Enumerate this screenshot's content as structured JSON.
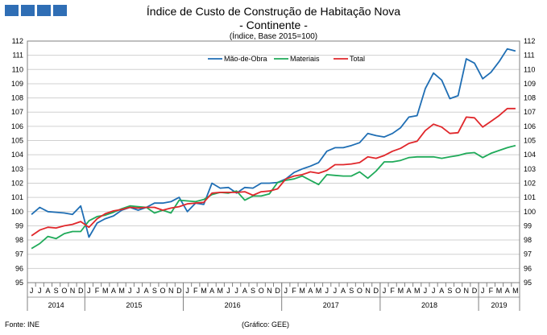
{
  "header": {
    "title": "Índice de Custo de Construção de Habitação Nova",
    "subtitle": "- Continente -",
    "base_note": "(Índice, Base 2015=100)"
  },
  "footer": {
    "source": "Fonte: INE",
    "credit": "(Gráfico: GEE)"
  },
  "colors": {
    "logo": "#2f6eb5",
    "grid": "#d0d0d0",
    "axis": "#808080"
  },
  "chart_data": {
    "type": "line",
    "ylim": [
      95,
      112
    ],
    "yticks": [
      95,
      96,
      97,
      98,
      99,
      100,
      101,
      102,
      103,
      104,
      105,
      106,
      107,
      108,
      109,
      110,
      111,
      112
    ],
    "month_labels": [
      "J",
      "J",
      "A",
      "S",
      "O",
      "N",
      "D",
      "J",
      "F",
      "M",
      "A",
      "M",
      "J",
      "J",
      "A",
      "S",
      "O",
      "N",
      "D",
      "J",
      "F",
      "M",
      "A",
      "M",
      "J",
      "J",
      "A",
      "S",
      "O",
      "N",
      "D",
      "J",
      "F",
      "M",
      "A",
      "M",
      "J",
      "J",
      "A",
      "S",
      "O",
      "N",
      "D",
      "J",
      "F",
      "M",
      "A",
      "M",
      "J",
      "J",
      "A",
      "S",
      "O",
      "N",
      "D",
      "J",
      "F",
      "M",
      "A",
      "M"
    ],
    "years": [
      {
        "label": "2014",
        "start": 0,
        "count": 7
      },
      {
        "label": "2015",
        "start": 7,
        "count": 12
      },
      {
        "label": "2016",
        "start": 19,
        "count": 12
      },
      {
        "label": "2017",
        "start": 31,
        "count": 12
      },
      {
        "label": "2018",
        "start": 43,
        "count": 12
      },
      {
        "label": "2019",
        "start": 55,
        "count": 5
      }
    ],
    "legend_position": "top-center",
    "grid": true,
    "series": [
      {
        "name": "Mão-de-Obra",
        "color": "#1f6eb4",
        "values": [
          99.8,
          100.3,
          100.0,
          99.95,
          99.9,
          99.8,
          100.4,
          98.2,
          99.2,
          99.5,
          99.7,
          100.1,
          100.3,
          100.1,
          100.3,
          100.6,
          100.6,
          100.7,
          101.0,
          100.0,
          100.6,
          100.5,
          102.0,
          101.65,
          101.7,
          101.3,
          101.7,
          101.65,
          102.0,
          102.0,
          102.05,
          102.3,
          102.75,
          103.0,
          103.2,
          103.45,
          104.25,
          104.5,
          104.5,
          104.65,
          104.85,
          105.5,
          105.35,
          105.25,
          105.5,
          105.9,
          106.65,
          106.75,
          108.65,
          109.75,
          109.25,
          107.95,
          108.15,
          110.75,
          110.45,
          109.35,
          109.8,
          110.55,
          111.45,
          111.3
        ]
      },
      {
        "name": "Materiais",
        "color": "#1faa59",
        "values": [
          97.4,
          97.75,
          98.25,
          98.1,
          98.45,
          98.6,
          98.6,
          99.35,
          99.65,
          99.75,
          99.95,
          100.2,
          100.4,
          100.35,
          100.3,
          99.9,
          100.1,
          99.9,
          100.8,
          100.75,
          100.7,
          100.85,
          101.2,
          101.35,
          101.3,
          101.45,
          100.8,
          101.1,
          101.1,
          101.25,
          102.05,
          102.2,
          102.3,
          102.5,
          102.2,
          101.9,
          102.6,
          102.55,
          102.5,
          102.5,
          102.8,
          102.35,
          102.85,
          103.5,
          103.5,
          103.6,
          103.8,
          103.85,
          103.85,
          103.85,
          103.75,
          103.85,
          103.95,
          104.1,
          104.15,
          103.8,
          104.1,
          104.3,
          104.5,
          104.65
        ]
      },
      {
        "name": "Total",
        "color": "#e0272b",
        "values": [
          98.3,
          98.7,
          98.9,
          98.85,
          99.0,
          99.1,
          99.3,
          98.9,
          99.5,
          99.85,
          100.05,
          100.15,
          100.3,
          100.25,
          100.3,
          100.3,
          100.1,
          100.25,
          100.35,
          100.55,
          100.6,
          100.65,
          101.3,
          101.35,
          101.35,
          101.35,
          101.4,
          101.15,
          101.4,
          101.45,
          101.6,
          102.3,
          102.5,
          102.6,
          102.8,
          102.7,
          102.9,
          103.3,
          103.3,
          103.35,
          103.45,
          103.85,
          103.75,
          103.95,
          104.25,
          104.45,
          104.8,
          104.95,
          105.7,
          106.15,
          105.95,
          105.5,
          105.55,
          106.65,
          106.6,
          105.95,
          106.35,
          106.75,
          107.25,
          107.25
        ]
      }
    ]
  }
}
